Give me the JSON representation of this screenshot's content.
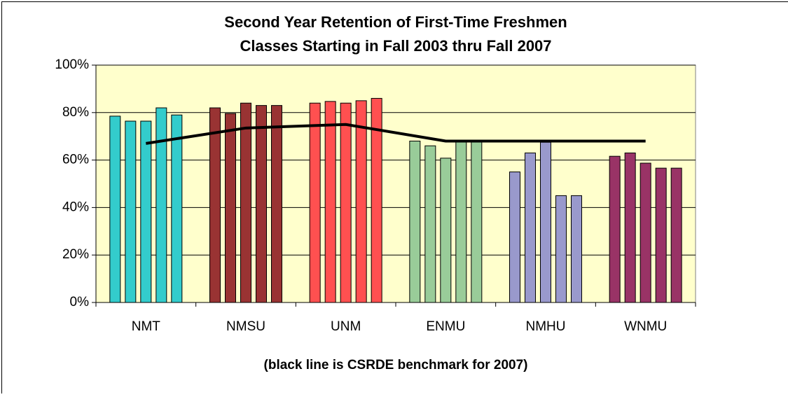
{
  "chart_data": {
    "type": "grouped-bar",
    "title": [
      "Second Year Retention of First-Time Freshmen",
      "Classes Starting in Fall 2003 thru Fall 2007"
    ],
    "annotation": "(black line is CSRDE benchmark for 2007)",
    "categories": [
      "NMT",
      "NMSU",
      "UNM",
      "ENMU",
      "NMHU",
      "WNMU"
    ],
    "groups": [
      {
        "color": "#33cccc",
        "values": [
          78.5,
          76.4,
          76.4,
          82,
          79
        ]
      },
      {
        "color": "#993333",
        "values": [
          82,
          79.6,
          84,
          83,
          83
        ]
      },
      {
        "color": "#ff5050",
        "values": [
          84,
          84.7,
          84,
          85,
          86
        ]
      },
      {
        "color": "#99cc99",
        "values": [
          68,
          66,
          60.8,
          68,
          68
        ]
      },
      {
        "color": "#9999cc",
        "values": [
          55,
          63,
          67.5,
          45,
          45
        ]
      },
      {
        "color": "#993366",
        "values": [
          61.6,
          63,
          58.7,
          56.6,
          56.6
        ]
      }
    ],
    "benchmark": {
      "color": "#000000",
      "values": [
        67,
        73.5,
        75,
        68,
        68,
        68
      ]
    },
    "ylim": [
      0,
      100
    ],
    "yticks": [
      {
        "value": 0,
        "label": "0%"
      },
      {
        "value": 20,
        "label": "20%"
      },
      {
        "value": 40,
        "label": "40%"
      },
      {
        "value": 60,
        "label": "60%"
      },
      {
        "value": 80,
        "label": "80%"
      },
      {
        "value": 100,
        "label": "100%"
      }
    ],
    "grid": true,
    "plot_background": "#ffffcc"
  }
}
